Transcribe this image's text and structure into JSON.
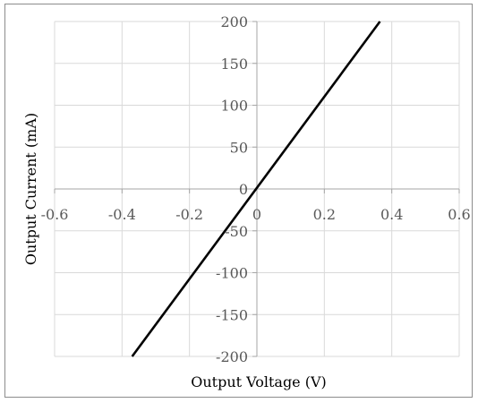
{
  "chart_data": {
    "type": "line",
    "title": "",
    "xlabel": "Output Voltage (V)",
    "ylabel": "Output Current (mA)",
    "xlim": [
      -0.6,
      0.6
    ],
    "ylim": [
      -200,
      200
    ],
    "x_ticks": [
      -0.6,
      -0.4,
      -0.2,
      0,
      0.2,
      0.4,
      0.6
    ],
    "x_tick_labels": [
      "-0.6",
      "-0.4",
      "-0.2",
      "0",
      "0.2",
      "0.4",
      "0.6"
    ],
    "y_ticks": [
      -200,
      -150,
      -100,
      -50,
      0,
      50,
      100,
      150,
      200
    ],
    "y_tick_labels": [
      "-200",
      "-150",
      "-100",
      "-50",
      "0",
      "50",
      "100",
      "150",
      "200"
    ],
    "grid": true,
    "legend": "none",
    "series": [
      {
        "x": [
          -0.37,
          0.365
        ],
        "y": [
          -200,
          200
        ],
        "color": "#000000"
      }
    ],
    "colors": {
      "grid": "#d9d9d9",
      "axis": "#a6a6a6",
      "line": "#000000",
      "text": "#595959"
    }
  }
}
